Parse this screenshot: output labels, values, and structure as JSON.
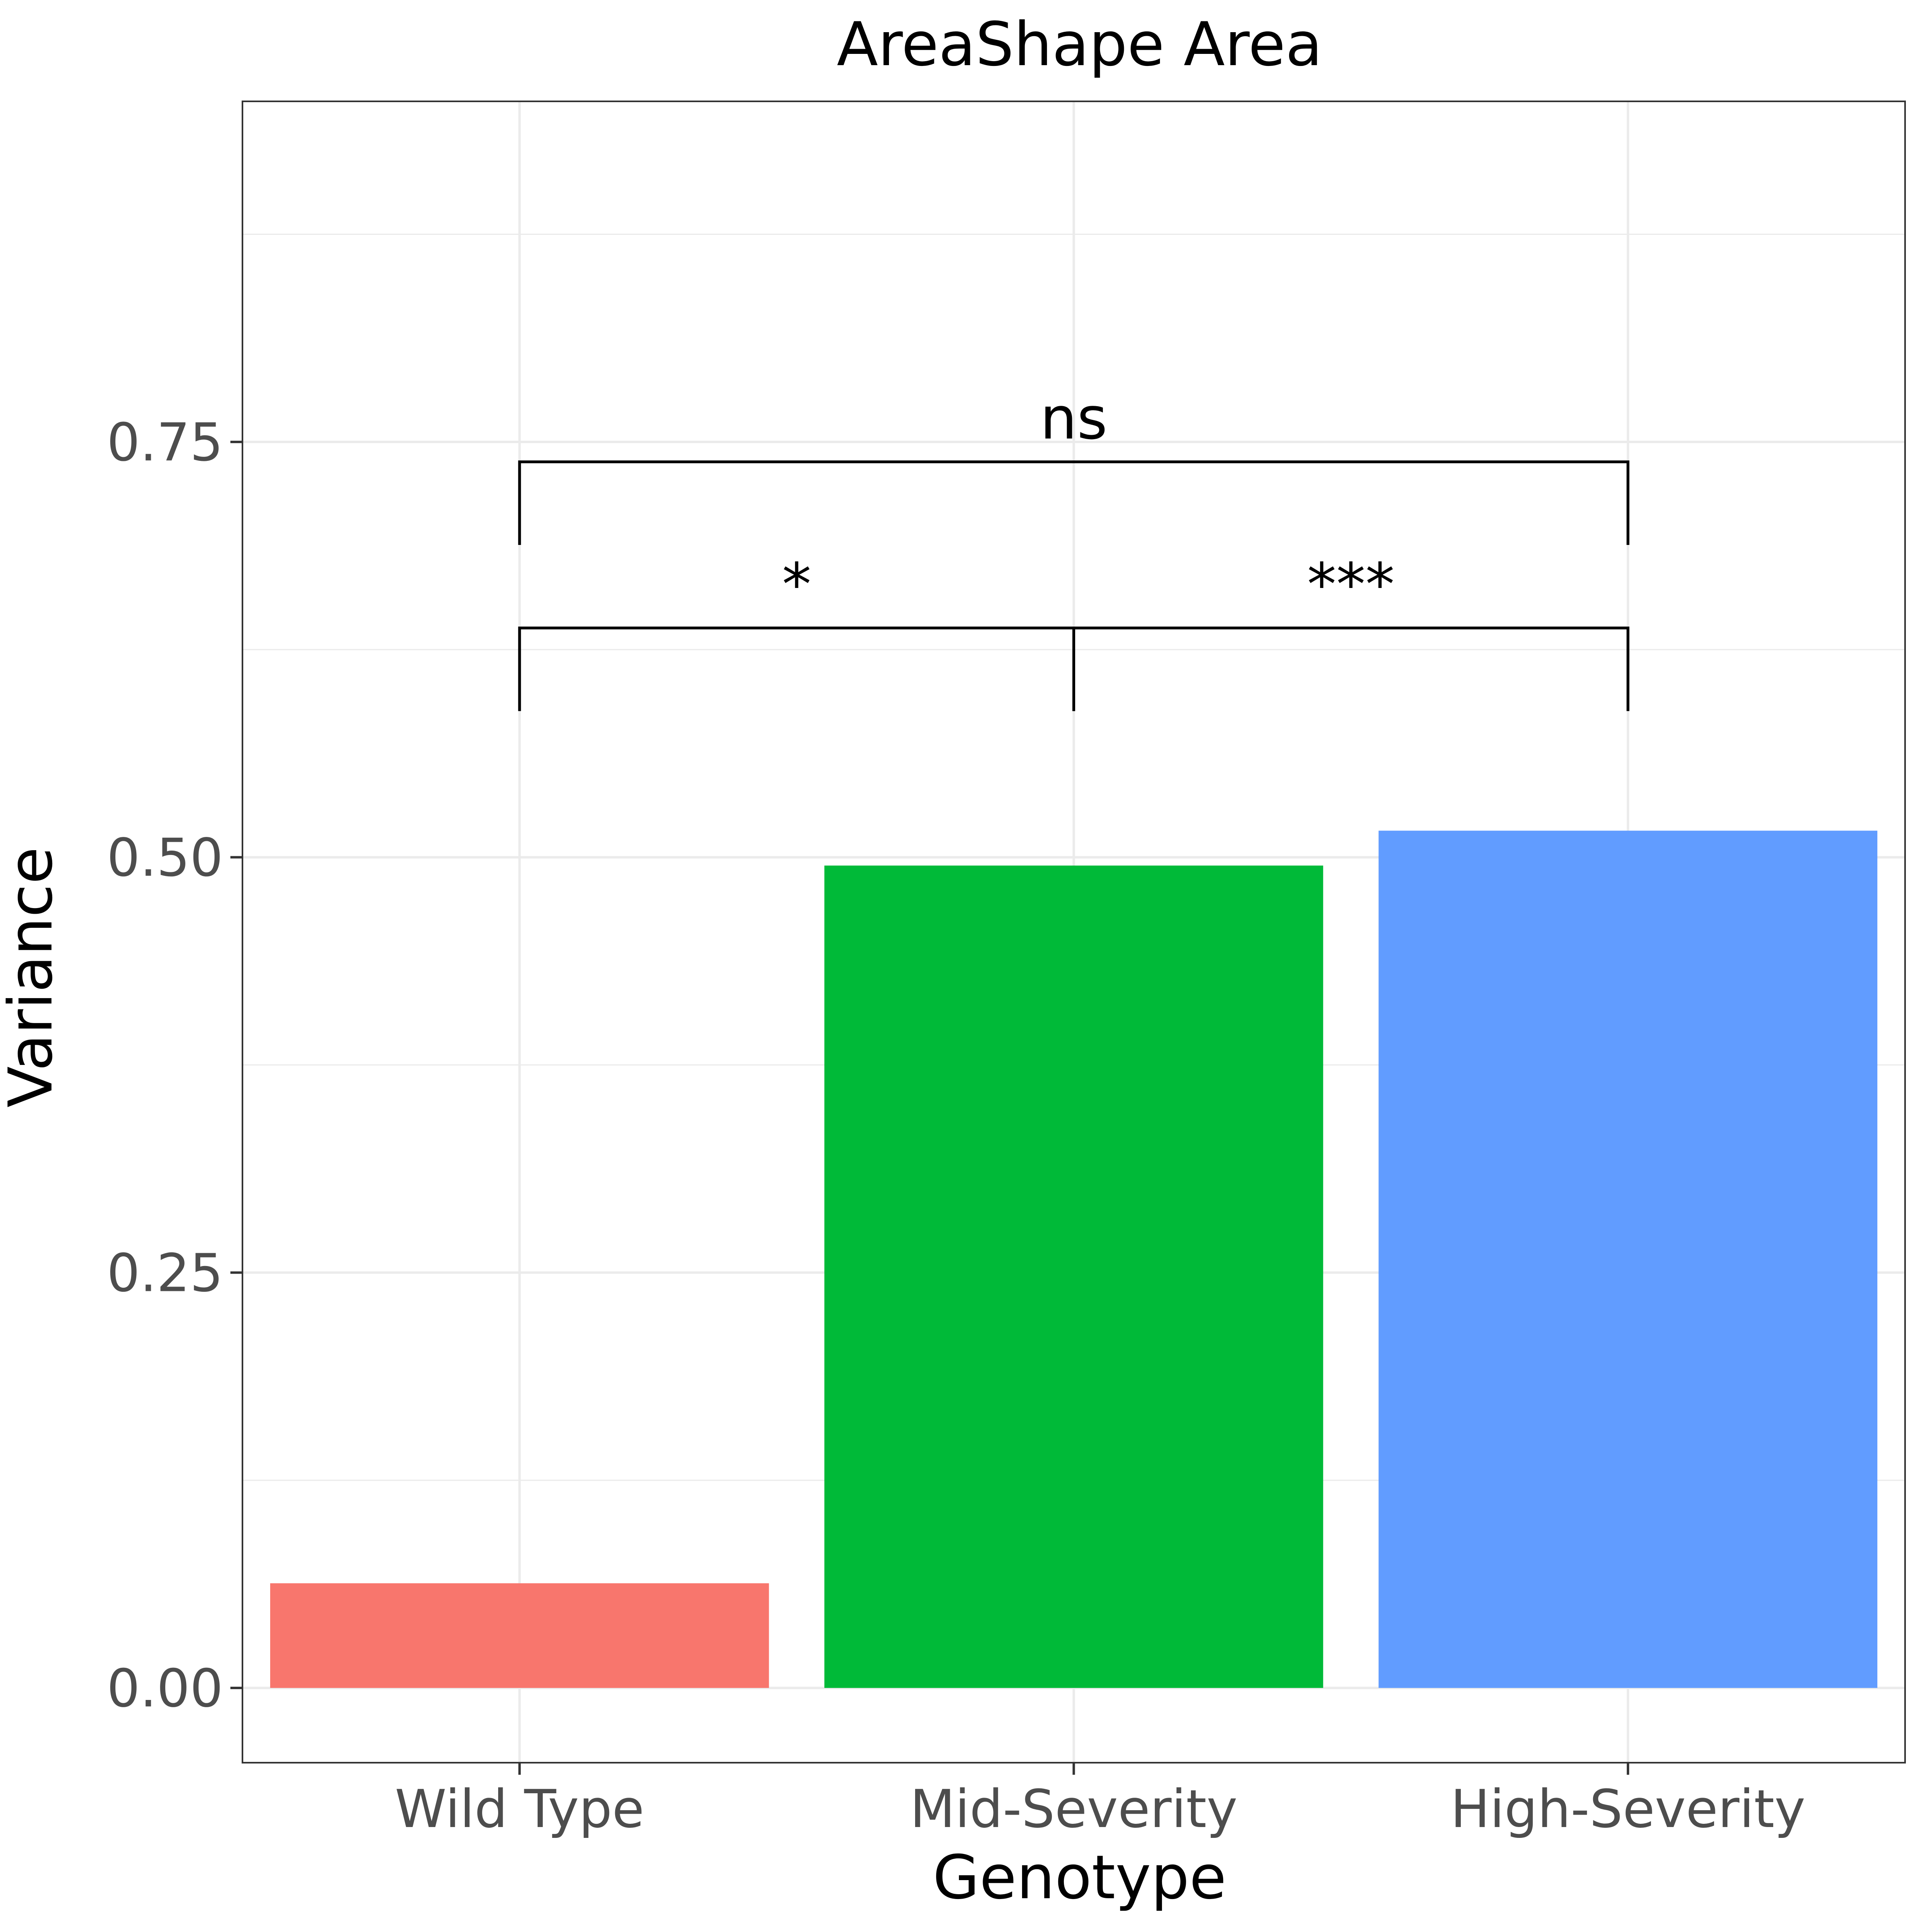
{
  "chart_data": {
    "type": "bar",
    "title": "AreaShape Area",
    "xlabel": "Genotype",
    "ylabel": "Variance",
    "categories": [
      "Wild Type",
      "Mid-Severity",
      "High-Severity"
    ],
    "values": [
      0.063,
      0.495,
      0.516
    ],
    "colors": [
      "#F8766D",
      "#00BA38",
      "#619CFF"
    ],
    "ylim": [
      -0.045,
      0.955
    ],
    "yticks": [
      0.0,
      0.25,
      0.5,
      0.75
    ],
    "ytick_labels": [
      "0.00",
      "0.25",
      "0.50",
      "0.75"
    ],
    "grid": true,
    "legend": "none",
    "comparisons": [
      {
        "from": 0,
        "to": 1,
        "label": "*",
        "y": 0.638
      },
      {
        "from": 1,
        "to": 2,
        "label": "***",
        "y": 0.638
      },
      {
        "from": 0,
        "to": 2,
        "label": "ns",
        "y": 0.738
      }
    ]
  }
}
